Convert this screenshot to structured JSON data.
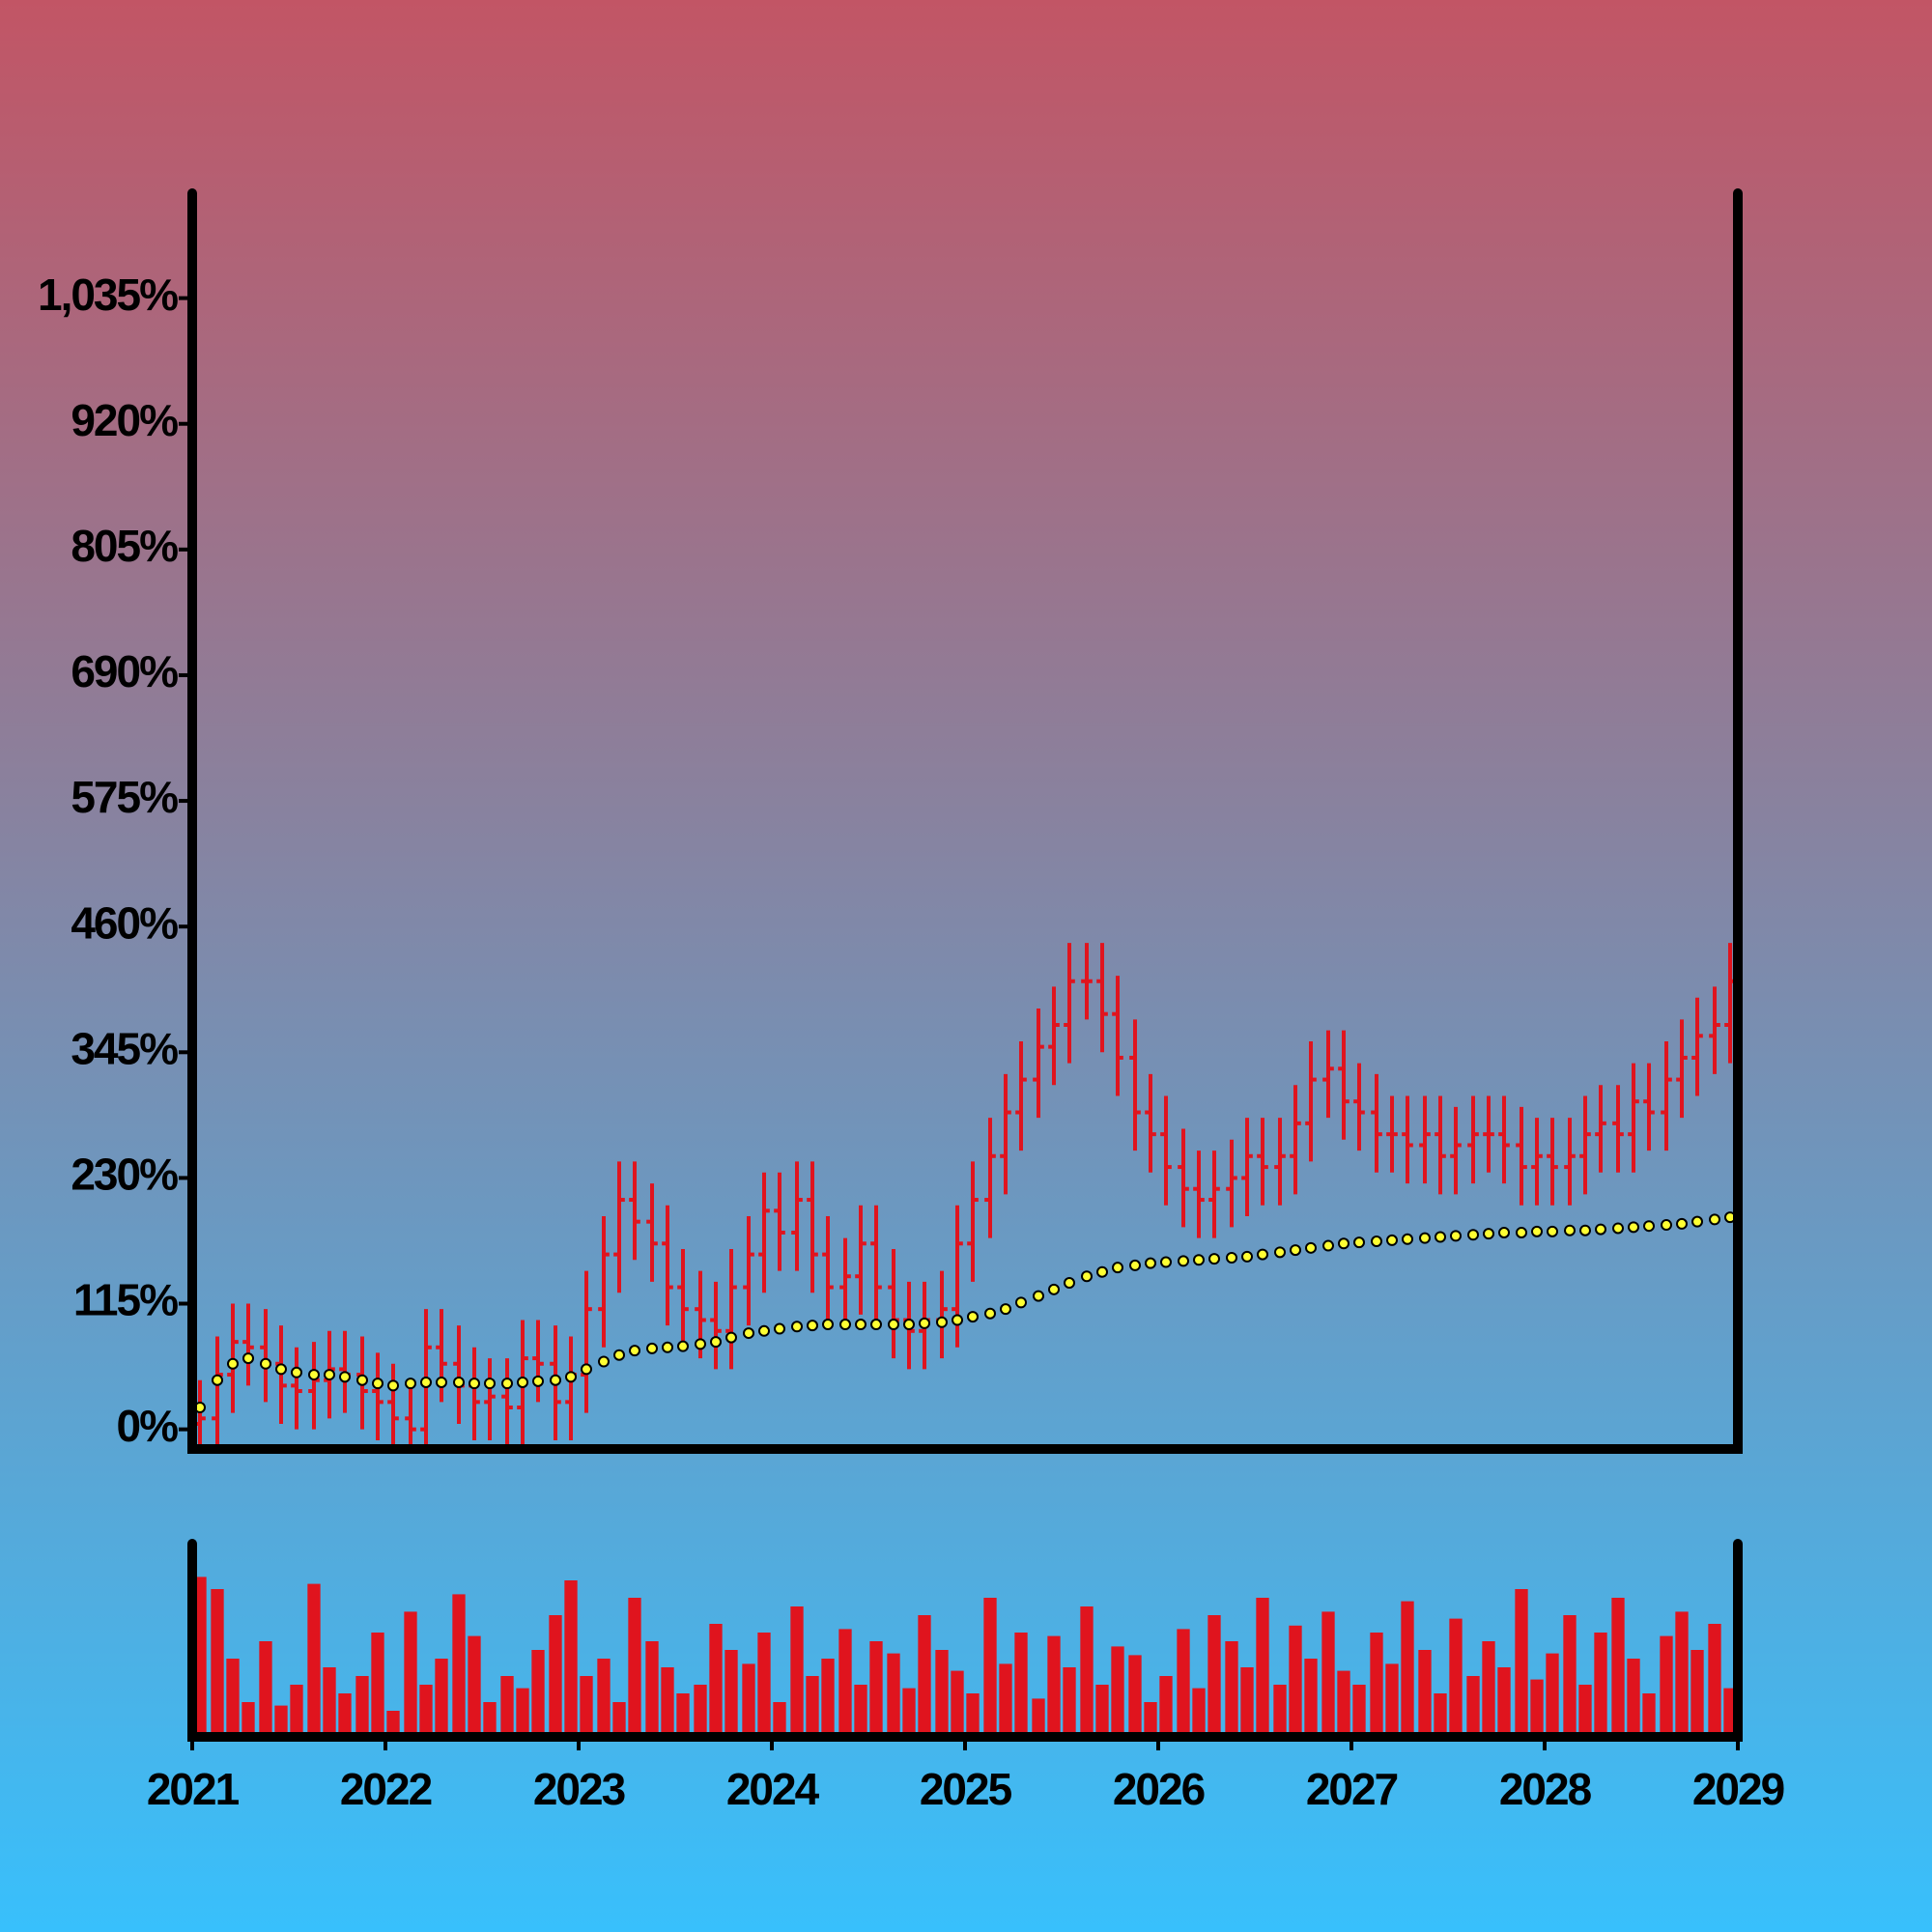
{
  "chart_data": {
    "type": "ohlc",
    "x": [
      2021.04,
      2021.13,
      2021.21,
      2021.29,
      2021.38,
      2021.46,
      2021.54,
      2021.63,
      2021.71,
      2021.79,
      2021.88,
      2021.96,
      2022.04,
      2022.13,
      2022.21,
      2022.29,
      2022.38,
      2022.46,
      2022.54,
      2022.63,
      2022.71,
      2022.79,
      2022.88,
      2022.96,
      2023.04,
      2023.13,
      2023.21,
      2023.29,
      2023.38,
      2023.46,
      2023.54,
      2023.63,
      2023.71,
      2023.79,
      2023.88,
      2023.96,
      2024.04,
      2024.13,
      2024.21,
      2024.29,
      2024.38,
      2024.46,
      2024.54,
      2024.63,
      2024.71,
      2024.79,
      2024.88,
      2024.96,
      2025.04,
      2025.13,
      2025.21,
      2025.29,
      2025.38,
      2025.46,
      2025.54,
      2025.63,
      2025.71,
      2025.79,
      2025.88,
      2025.96,
      2026.04,
      2026.13,
      2026.21,
      2026.29,
      2026.38,
      2026.46,
      2026.54,
      2026.63,
      2026.71,
      2026.79,
      2026.88,
      2026.96,
      2027.04,
      2027.13,
      2027.21,
      2027.29,
      2027.38,
      2027.46,
      2027.54,
      2027.63,
      2027.71,
      2027.79,
      2027.88,
      2027.96,
      2028.04,
      2028.13,
      2028.21,
      2028.29,
      2028.38,
      2028.46,
      2028.54,
      2028.63,
      2028.71,
      2028.79,
      2028.88,
      2028.96
    ],
    "open": [
      5,
      10,
      50,
      80,
      75,
      60,
      40,
      35,
      45,
      55,
      50,
      35,
      25,
      10,
      0,
      75,
      60,
      40,
      25,
      30,
      20,
      65,
      60,
      25,
      50,
      110,
      160,
      210,
      190,
      170,
      130,
      110,
      100,
      90,
      130,
      160,
      200,
      180,
      210,
      160,
      130,
      140,
      170,
      130,
      100,
      90,
      100,
      110,
      170,
      210,
      250,
      290,
      320,
      350,
      370,
      410,
      410,
      380,
      340,
      290,
      270,
      240,
      220,
      210,
      220,
      230,
      250,
      240,
      250,
      280,
      320,
      330,
      300,
      290,
      270,
      270,
      260,
      270,
      250,
      260,
      270,
      270,
      260,
      240,
      250,
      240,
      250,
      270,
      280,
      270,
      300,
      290,
      320,
      340,
      360,
      370
    ],
    "high": [
      45,
      85,
      115,
      115,
      110,
      95,
      75,
      80,
      90,
      90,
      85,
      70,
      60,
      45,
      110,
      110,
      95,
      75,
      65,
      65,
      100,
      100,
      95,
      85,
      145,
      195,
      245,
      245,
      225,
      205,
      165,
      145,
      135,
      165,
      195,
      235,
      235,
      245,
      245,
      195,
      175,
      205,
      205,
      165,
      135,
      135,
      145,
      205,
      245,
      285,
      325,
      355,
      385,
      405,
      445,
      445,
      445,
      415,
      375,
      325,
      305,
      275,
      255,
      255,
      265,
      285,
      285,
      285,
      315,
      355,
      365,
      365,
      335,
      325,
      305,
      305,
      305,
      305,
      295,
      305,
      305,
      305,
      295,
      285,
      285,
      285,
      305,
      315,
      315,
      335,
      335,
      355,
      375,
      395,
      405,
      445
    ],
    "low": [
      -15,
      -15,
      15,
      40,
      25,
      5,
      0,
      0,
      10,
      15,
      0,
      -10,
      -15,
      -15,
      -15,
      25,
      5,
      -10,
      -10,
      -15,
      -15,
      25,
      -10,
      -10,
      15,
      75,
      125,
      155,
      135,
      95,
      75,
      65,
      55,
      55,
      95,
      125,
      145,
      145,
      125,
      95,
      95,
      105,
      95,
      65,
      55,
      55,
      65,
      75,
      135,
      175,
      215,
      255,
      285,
      315,
      335,
      375,
      345,
      305,
      255,
      235,
      205,
      185,
      175,
      175,
      185,
      195,
      205,
      205,
      215,
      245,
      285,
      265,
      255,
      235,
      235,
      225,
      225,
      215,
      215,
      225,
      235,
      225,
      205,
      205,
      205,
      205,
      215,
      235,
      235,
      235,
      255,
      255,
      285,
      305,
      325,
      335
    ],
    "close": [
      10,
      50,
      80,
      75,
      60,
      40,
      35,
      45,
      55,
      50,
      35,
      25,
      10,
      0,
      75,
      60,
      40,
      25,
      30,
      20,
      65,
      60,
      25,
      50,
      110,
      160,
      210,
      190,
      170,
      130,
      110,
      100,
      90,
      130,
      160,
      200,
      180,
      210,
      160,
      130,
      140,
      170,
      130,
      100,
      90,
      100,
      110,
      170,
      210,
      250,
      290,
      320,
      350,
      370,
      410,
      410,
      380,
      340,
      290,
      270,
      240,
      220,
      210,
      220,
      230,
      250,
      240,
      250,
      280,
      320,
      330,
      300,
      290,
      270,
      270,
      260,
      270,
      250,
      260,
      270,
      270,
      260,
      240,
      250,
      240,
      250,
      270,
      280,
      270,
      300,
      290,
      320,
      340,
      360,
      370,
      410
    ],
    "ma": [
      20,
      45,
      60,
      65,
      60,
      55,
      52,
      50,
      50,
      48,
      45,
      42,
      40,
      42,
      43,
      43,
      43,
      42,
      42,
      42,
      43,
      44,
      45,
      48,
      55,
      62,
      68,
      72,
      74,
      75,
      76,
      78,
      80,
      84,
      88,
      90,
      92,
      94,
      95,
      96,
      96,
      96,
      96,
      96,
      96,
      97,
      98,
      100,
      103,
      106,
      110,
      116,
      122,
      128,
      134,
      140,
      144,
      148,
      150,
      152,
      153,
      154,
      155,
      156,
      157,
      158,
      160,
      162,
      164,
      166,
      168,
      170,
      171,
      172,
      173,
      174,
      175,
      176,
      177,
      178,
      179,
      180,
      180,
      181,
      181,
      182,
      182,
      183,
      184,
      185,
      186,
      187,
      188,
      190,
      192,
      194
    ],
    "volume": [
      92,
      85,
      45,
      20,
      55,
      18,
      30,
      88,
      40,
      25,
      35,
      60,
      15,
      72,
      30,
      45,
      82,
      58,
      20,
      35,
      28,
      50,
      70,
      90,
      35,
      45,
      20,
      80,
      55,
      40,
      25,
      30,
      65,
      50,
      42,
      60,
      20,
      75,
      35,
      45,
      62,
      30,
      55,
      48,
      28,
      70,
      50,
      38,
      25,
      80,
      42,
      60,
      22,
      58,
      40,
      75,
      30,
      52,
      47,
      20,
      35,
      62,
      28,
      70,
      55,
      40,
      80,
      30,
      64,
      45,
      72,
      38,
      30,
      60,
      42,
      78,
      50,
      25,
      68,
      35,
      55,
      40,
      85,
      33,
      48,
      70,
      30,
      60,
      80,
      45,
      25,
      58,
      72,
      50,
      65,
      28
    ],
    "color": "#e0141e",
    "ma_color": "#ffff33",
    "xlim": [
      2021,
      2029
    ],
    "xticks": [
      2021,
      2022,
      2023,
      2024,
      2025,
      2026,
      2027,
      2028,
      2029
    ],
    "ylim": [
      -18,
      1131
    ],
    "yticks": [
      {
        "value": 0,
        "label": "0%"
      },
      {
        "value": 115,
        "label": "115%"
      },
      {
        "value": 230,
        "label": "230%"
      },
      {
        "value": 345,
        "label": "345%"
      },
      {
        "value": 460,
        "label": "460%"
      },
      {
        "value": 575,
        "label": "575%"
      },
      {
        "value": 690,
        "label": "690%"
      },
      {
        "value": 805,
        "label": "805%"
      },
      {
        "value": 920,
        "label": "920%"
      },
      {
        "value": 1035,
        "label": "1,035%"
      }
    ],
    "volume_lim": [
      0,
      100
    ]
  }
}
